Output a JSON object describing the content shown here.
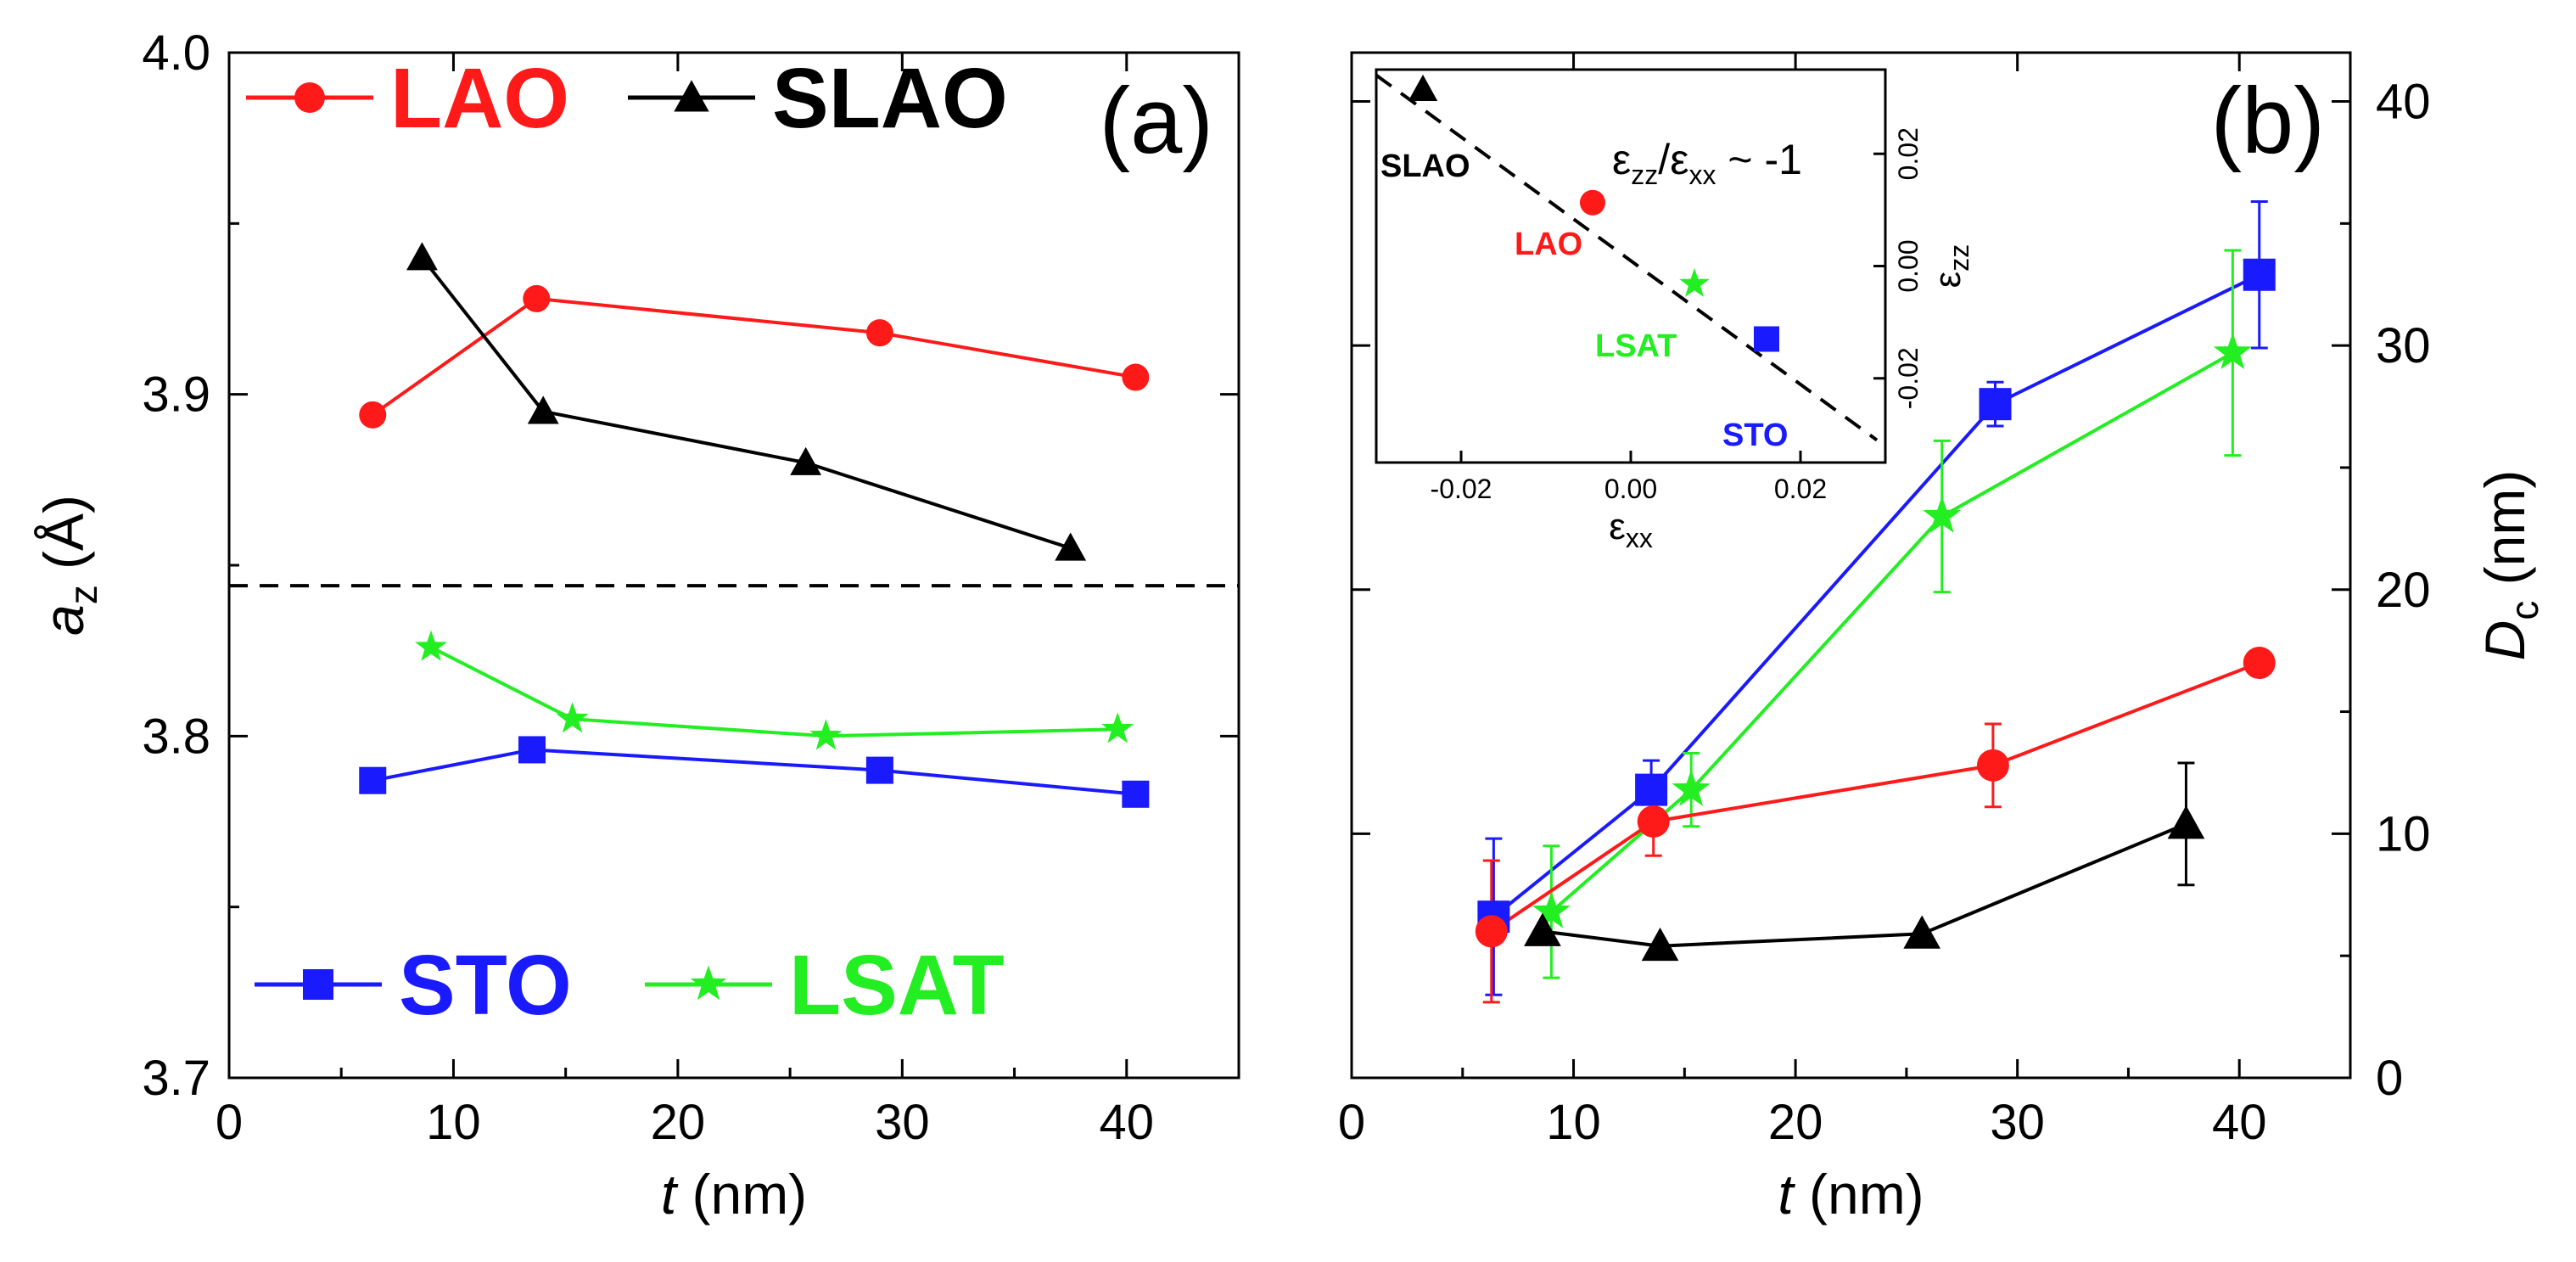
{
  "colors": {
    "LAO": "#ff1a1a",
    "SLAO": "#000000",
    "STO": "#1a1aff",
    "LSAT": "#22ee22"
  },
  "chart_data": [
    {
      "panel": "a",
      "type": "line",
      "panel_label": "(a)",
      "xlabel_var": "t",
      "xlabel_unit": " (nm)",
      "ylabel_var": "a",
      "ylabel_sub": "z",
      "ylabel_unit": " (Å)",
      "xlim": [
        0,
        45
      ],
      "ylim": [
        3.7,
        4.0
      ],
      "xticks": [
        0,
        10,
        20,
        30,
        40
      ],
      "xtick_labels": [
        "0",
        "10",
        "20",
        "30",
        "40"
      ],
      "yticks": [
        3.7,
        3.8,
        3.9,
        4.0
      ],
      "ytick_labels": [
        "3.7",
        "3.8",
        "3.9",
        "4.0"
      ],
      "reference_line_y": 3.844,
      "series": [
        {
          "name": "LAO",
          "marker": "circle",
          "x": [
            6.4,
            13.7,
            29.0,
            40.4
          ],
          "y": [
            3.894,
            3.928,
            3.918,
            3.905
          ]
        },
        {
          "name": "SLAO",
          "marker": "triangle",
          "x": [
            8.6,
            14.0,
            25.7,
            37.5
          ],
          "y": [
            3.94,
            3.895,
            3.88,
            3.855
          ]
        },
        {
          "name": "STO",
          "marker": "square",
          "x": [
            6.4,
            13.5,
            29.0,
            40.4
          ],
          "y": [
            3.787,
            3.796,
            3.79,
            3.783
          ]
        },
        {
          "name": "LSAT",
          "marker": "star",
          "x": [
            9.0,
            15.3,
            26.6,
            39.6
          ],
          "y": [
            3.826,
            3.805,
            3.8,
            3.802
          ]
        }
      ],
      "legend": [
        {
          "name": "LAO",
          "label": "LAO"
        },
        {
          "name": "SLAO",
          "label": "SLAO"
        },
        {
          "name": "STO",
          "label": "STO"
        },
        {
          "name": "LSAT",
          "label": "LSAT"
        }
      ]
    },
    {
      "panel": "b",
      "type": "line",
      "panel_label": "(b)",
      "xlabel_var": "t",
      "xlabel_unit": " (nm)",
      "ylabel_var": "D",
      "ylabel_sub": "c",
      "ylabel_unit": " (nm)",
      "xlim": [
        0,
        45
      ],
      "ylim": [
        0,
        42
      ],
      "xticks": [
        0,
        10,
        20,
        30,
        40
      ],
      "xtick_labels": [
        "0",
        "10",
        "20",
        "30",
        "40"
      ],
      "yticks": [
        0,
        10,
        20,
        30,
        40
      ],
      "ytick_labels": [
        "0",
        "10",
        "20",
        "30",
        "40"
      ],
      "series": [
        {
          "name": "STO",
          "marker": "square",
          "x": [
            6.4,
            13.5,
            29.0,
            40.9
          ],
          "y": [
            6.6,
            11.8,
            27.6,
            32.9
          ],
          "err": [
            3.2,
            1.2,
            0.9,
            3.0
          ]
        },
        {
          "name": "LSAT",
          "marker": "star",
          "x": [
            9.0,
            15.3,
            26.6,
            39.7
          ],
          "y": [
            6.8,
            11.8,
            23.0,
            29.7
          ],
          "err": [
            2.7,
            1.5,
            3.1,
            4.2
          ]
        },
        {
          "name": "LAO",
          "marker": "circle",
          "x": [
            6.3,
            13.6,
            28.9,
            40.9
          ],
          "y": [
            6.0,
            10.5,
            12.8,
            17.0
          ],
          "err": [
            2.9,
            1.4,
            1.7,
            0.0
          ]
        },
        {
          "name": "SLAO",
          "marker": "triangle",
          "x": [
            8.6,
            13.9,
            25.7,
            37.6
          ],
          "y": [
            6.0,
            5.4,
            5.9,
            10.4
          ],
          "err": [
            0.0,
            0.0,
            0.0,
            2.5
          ]
        }
      ],
      "inset": {
        "type": "scatter",
        "xlabel_var": "ε",
        "xlabel_sub": "xx",
        "ylabel_var": "ε",
        "ylabel_sub": "zz",
        "xlim": [
          -0.03,
          0.03
        ],
        "ylim": [
          -0.035,
          0.035
        ],
        "xticks": [
          -0.02,
          0.0,
          0.02
        ],
        "xtick_labels": [
          "-0.02",
          "0.00",
          "0.02"
        ],
        "yticks": [
          -0.02,
          0.0,
          0.02
        ],
        "ytick_labels": [
          "-0.02",
          "0.00",
          "0.02"
        ],
        "annotation_main": "ε",
        "annotation_sub1": "zz",
        "annotation_mid": "/ε",
        "annotation_sub2": "xx",
        "annotation_tail": " ~ -1",
        "fit_line": {
          "x": [
            -0.03,
            0.029
          ],
          "y": [
            0.034,
            -0.031
          ]
        },
        "points": [
          {
            "name": "SLAO",
            "label": "SLAO",
            "marker": "triangle",
            "x": -0.0245,
            "y": 0.0315
          },
          {
            "name": "LAO",
            "label": "LAO",
            "marker": "circle",
            "x": -0.0045,
            "y": 0.0113
          },
          {
            "name": "LSAT",
            "label": "LSAT",
            "marker": "star",
            "x": 0.0075,
            "y": -0.0032
          },
          {
            "name": "STO",
            "label": "STO",
            "marker": "square",
            "x": 0.016,
            "y": -0.013
          }
        ]
      }
    }
  ]
}
